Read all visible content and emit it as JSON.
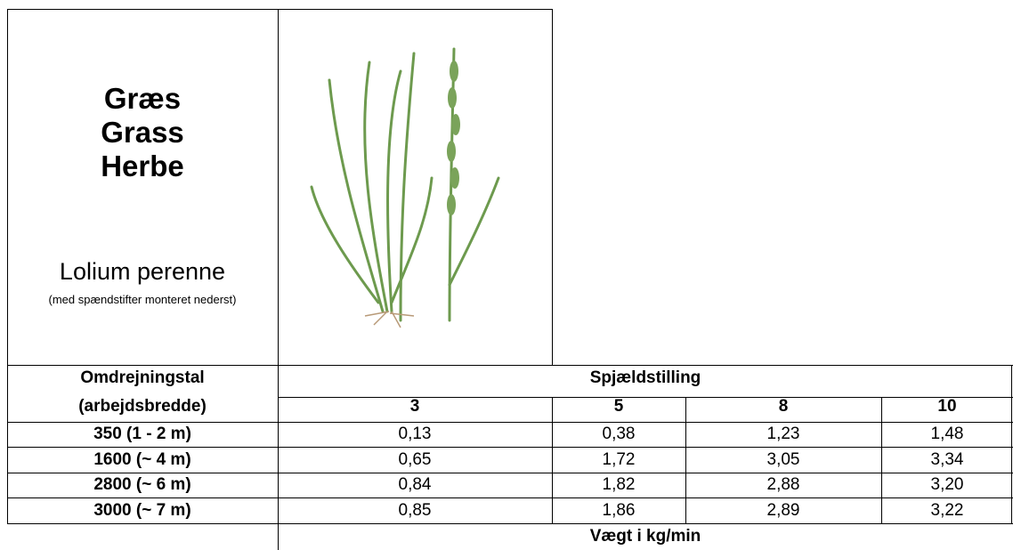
{
  "header": {
    "title_lines": [
      "Græs",
      "Grass",
      "Herbe"
    ],
    "species": "Lolium perenne",
    "note": "(med spændstifter monteret nederst)"
  },
  "table": {
    "row_header_top": "Omdrejningstal",
    "row_header_bottom": "(arbejdsbredde)",
    "column_group": "Spjældstilling",
    "columns": [
      "3",
      "5",
      "8",
      "10"
    ],
    "rows": [
      [
        "350 (1 - 2 m)",
        "0,13",
        "0,38",
        "1,23",
        "1,48"
      ],
      [
        "1600 (~ 4 m)",
        "0,65",
        "1,72",
        "3,05",
        "3,34"
      ],
      [
        "2800 (~ 6 m)",
        "0,84",
        "1,82",
        "2,88",
        "3,20"
      ],
      [
        "3000 (~ 7 m)",
        "0,85",
        "1,86",
        "2,89",
        "3,22"
      ]
    ],
    "footer": "Vægt i kg/min"
  }
}
